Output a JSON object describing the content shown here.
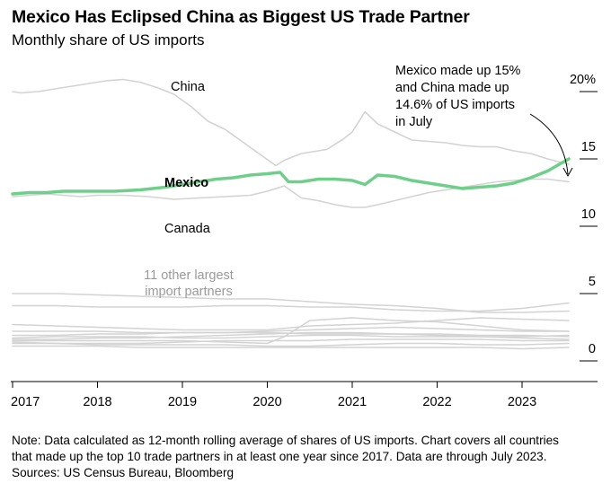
{
  "title": "Mexico Has Eclipsed China as Biggest US Trade Partner",
  "subtitle": "Monthly share of US imports",
  "annotation": [
    "Mexico made up 15%",
    "and China made up",
    "14.6% of US imports",
    "in July"
  ],
  "labels": {
    "china": "China",
    "mexico": "Mexico",
    "canada": "Canada",
    "others": [
      "11 other largest",
      "import partners"
    ]
  },
  "footnote": [
    "Note: Data calculated as 12-month rolling average of shares of US imports. Chart covers all countries",
    "that made up the top 10 trade partners in at least one year since 2017. Data are through July 2023.",
    "Sources: US Census Bureau, Bloomberg"
  ],
  "colors": {
    "mexico": "#6fcf8a",
    "gray": "#d3d3d3",
    "text": "#000000",
    "others_label": "#9a9a9a"
  },
  "chart_data": {
    "type": "line",
    "x_tick_labels": [
      "2017",
      "2018",
      "2019",
      "2020",
      "2021",
      "2022",
      "2023"
    ],
    "y_tick_labels": [
      "20%",
      "15",
      "10",
      "5",
      "0"
    ],
    "y_ticks": [
      20,
      15,
      10,
      5,
      0
    ],
    "xlim": [
      2017.0,
      2023.55
    ],
    "ylim": [
      0,
      21
    ],
    "series": [
      {
        "name": "China",
        "highlight": false,
        "points": [
          [
            2017.0,
            20.0
          ],
          [
            2017.1,
            19.9
          ],
          [
            2017.3,
            20.0
          ],
          [
            2017.5,
            20.2
          ],
          [
            2017.7,
            20.4
          ],
          [
            2017.9,
            20.6
          ],
          [
            2018.1,
            20.8
          ],
          [
            2018.3,
            20.9
          ],
          [
            2018.5,
            20.7
          ],
          [
            2018.7,
            20.3
          ],
          [
            2018.9,
            19.8
          ],
          [
            2019.1,
            18.9
          ],
          [
            2019.3,
            17.8
          ],
          [
            2019.5,
            17.2
          ],
          [
            2019.7,
            16.3
          ],
          [
            2019.9,
            15.4
          ],
          [
            2020.1,
            14.5
          ],
          [
            2020.2,
            14.9
          ],
          [
            2020.4,
            15.4
          ],
          [
            2020.6,
            15.6
          ],
          [
            2020.7,
            15.7
          ],
          [
            2020.9,
            16.5
          ],
          [
            2021.0,
            17.0
          ],
          [
            2021.15,
            18.5
          ],
          [
            2021.3,
            17.6
          ],
          [
            2021.5,
            17.0
          ],
          [
            2021.7,
            16.4
          ],
          [
            2021.9,
            16.3
          ],
          [
            2022.1,
            16.2
          ],
          [
            2022.3,
            16.0
          ],
          [
            2022.5,
            15.9
          ],
          [
            2022.7,
            15.9
          ],
          [
            2022.9,
            15.6
          ],
          [
            2023.1,
            15.4
          ],
          [
            2023.3,
            15.0
          ],
          [
            2023.55,
            14.6
          ]
        ]
      },
      {
        "name": "Mexico",
        "highlight": true,
        "points": [
          [
            2017.0,
            12.4
          ],
          [
            2017.2,
            12.5
          ],
          [
            2017.4,
            12.5
          ],
          [
            2017.6,
            12.6
          ],
          [
            2017.8,
            12.6
          ],
          [
            2018.0,
            12.6
          ],
          [
            2018.2,
            12.6
          ],
          [
            2018.5,
            12.7
          ],
          [
            2018.8,
            12.9
          ],
          [
            2019.0,
            13.1
          ],
          [
            2019.2,
            13.3
          ],
          [
            2019.4,
            13.5
          ],
          [
            2019.6,
            13.6
          ],
          [
            2019.8,
            13.8
          ],
          [
            2020.0,
            13.9
          ],
          [
            2020.15,
            14.0
          ],
          [
            2020.25,
            13.3
          ],
          [
            2020.4,
            13.3
          ],
          [
            2020.6,
            13.5
          ],
          [
            2020.8,
            13.5
          ],
          [
            2021.0,
            13.4
          ],
          [
            2021.15,
            13.1
          ],
          [
            2021.3,
            13.8
          ],
          [
            2021.5,
            13.7
          ],
          [
            2021.7,
            13.4
          ],
          [
            2021.9,
            13.2
          ],
          [
            2022.1,
            13.0
          ],
          [
            2022.3,
            12.8
          ],
          [
            2022.5,
            12.9
          ],
          [
            2022.7,
            13.0
          ],
          [
            2022.9,
            13.2
          ],
          [
            2023.1,
            13.6
          ],
          [
            2023.3,
            14.1
          ],
          [
            2023.55,
            15.0
          ]
        ]
      },
      {
        "name": "Canada",
        "highlight": false,
        "points": [
          [
            2017.0,
            12.2
          ],
          [
            2017.2,
            12.3
          ],
          [
            2017.4,
            12.4
          ],
          [
            2017.6,
            12.3
          ],
          [
            2017.8,
            12.2
          ],
          [
            2018.0,
            12.3
          ],
          [
            2018.3,
            12.3
          ],
          [
            2018.6,
            12.2
          ],
          [
            2018.9,
            12.0
          ],
          [
            2019.2,
            12.1
          ],
          [
            2019.5,
            12.2
          ],
          [
            2019.8,
            12.3
          ],
          [
            2020.0,
            12.6
          ],
          [
            2020.2,
            13.0
          ],
          [
            2020.4,
            12.1
          ],
          [
            2020.6,
            11.9
          ],
          [
            2020.8,
            11.6
          ],
          [
            2021.0,
            11.4
          ],
          [
            2021.15,
            11.4
          ],
          [
            2021.3,
            11.6
          ],
          [
            2021.5,
            11.9
          ],
          [
            2021.7,
            12.2
          ],
          [
            2021.9,
            12.5
          ],
          [
            2022.1,
            12.7
          ],
          [
            2022.3,
            12.9
          ],
          [
            2022.5,
            13.1
          ],
          [
            2022.7,
            13.3
          ],
          [
            2022.9,
            13.4
          ],
          [
            2023.1,
            13.5
          ],
          [
            2023.3,
            13.5
          ],
          [
            2023.55,
            13.3
          ]
        ]
      },
      {
        "name": "",
        "highlight": false,
        "points": [
          [
            2017.0,
            5.0
          ],
          [
            2017.5,
            5.0
          ],
          [
            2018.0,
            4.9
          ],
          [
            2018.5,
            4.8
          ],
          [
            2019.0,
            4.7
          ],
          [
            2019.5,
            4.6
          ],
          [
            2020.0,
            4.6
          ],
          [
            2020.5,
            4.4
          ],
          [
            2021.0,
            4.2
          ],
          [
            2021.5,
            4.1
          ],
          [
            2022.0,
            3.9
          ],
          [
            2022.5,
            3.6
          ],
          [
            2023.0,
            3.6
          ],
          [
            2023.55,
            3.7
          ]
        ]
      },
      {
        "name": "",
        "highlight": false,
        "points": [
          [
            2017.0,
            4.1
          ],
          [
            2017.5,
            4.1
          ],
          [
            2018.0,
            4.0
          ],
          [
            2018.5,
            4.0
          ],
          [
            2019.0,
            4.0
          ],
          [
            2019.5,
            4.1
          ],
          [
            2020.0,
            4.1
          ],
          [
            2020.5,
            4.0
          ],
          [
            2021.0,
            4.0
          ],
          [
            2021.5,
            3.8
          ],
          [
            2022.0,
            3.7
          ],
          [
            2022.5,
            3.7
          ],
          [
            2023.0,
            3.9
          ],
          [
            2023.55,
            4.3
          ]
        ]
      },
      {
        "name": "",
        "highlight": false,
        "points": [
          [
            2017.0,
            2.7
          ],
          [
            2017.5,
            2.6
          ],
          [
            2018.0,
            2.5
          ],
          [
            2018.5,
            2.4
          ],
          [
            2019.0,
            2.3
          ],
          [
            2019.5,
            2.3
          ],
          [
            2020.0,
            2.3
          ],
          [
            2020.5,
            2.6
          ],
          [
            2021.0,
            2.7
          ],
          [
            2021.5,
            2.8
          ],
          [
            2022.0,
            3.0
          ],
          [
            2022.5,
            3.2
          ],
          [
            2023.0,
            3.1
          ],
          [
            2023.55,
            3.0
          ]
        ]
      },
      {
        "name": "",
        "highlight": false,
        "points": [
          [
            2017.0,
            2.2
          ],
          [
            2017.5,
            2.2
          ],
          [
            2018.0,
            2.2
          ],
          [
            2018.5,
            2.1
          ],
          [
            2019.0,
            2.1
          ],
          [
            2019.5,
            2.1
          ],
          [
            2020.0,
            2.2
          ],
          [
            2020.5,
            2.3
          ],
          [
            2021.0,
            2.4
          ],
          [
            2021.5,
            2.5
          ],
          [
            2022.0,
            2.4
          ],
          [
            2022.5,
            2.3
          ],
          [
            2023.0,
            2.2
          ],
          [
            2023.55,
            2.2
          ]
        ]
      },
      {
        "name": "",
        "highlight": false,
        "points": [
          [
            2017.0,
            1.9
          ],
          [
            2017.5,
            1.9
          ],
          [
            2018.0,
            2.0
          ],
          [
            2018.5,
            2.0
          ],
          [
            2019.0,
            2.1
          ],
          [
            2019.5,
            2.1
          ],
          [
            2020.0,
            2.1
          ],
          [
            2020.5,
            2.0
          ],
          [
            2021.0,
            2.0
          ],
          [
            2021.5,
            2.0
          ],
          [
            2022.0,
            2.0
          ],
          [
            2022.5,
            1.9
          ],
          [
            2023.0,
            1.9
          ],
          [
            2023.55,
            1.8
          ]
        ]
      },
      {
        "name": "",
        "highlight": false,
        "points": [
          [
            2017.0,
            1.7
          ],
          [
            2017.5,
            1.8
          ],
          [
            2018.0,
            1.8
          ],
          [
            2018.5,
            1.8
          ],
          [
            2019.0,
            1.7
          ],
          [
            2019.5,
            1.7
          ],
          [
            2020.0,
            1.8
          ],
          [
            2020.5,
            1.9
          ],
          [
            2021.0,
            1.9
          ],
          [
            2021.5,
            1.8
          ],
          [
            2022.0,
            1.8
          ],
          [
            2022.5,
            1.8
          ],
          [
            2023.0,
            1.8
          ],
          [
            2023.55,
            1.9
          ]
        ]
      },
      {
        "name": "",
        "highlight": false,
        "points": [
          [
            2017.0,
            1.6
          ],
          [
            2017.5,
            1.6
          ],
          [
            2018.0,
            1.7
          ],
          [
            2018.5,
            1.7
          ],
          [
            2019.0,
            1.8
          ],
          [
            2019.5,
            1.9
          ],
          [
            2020.0,
            2.0
          ],
          [
            2020.5,
            2.1
          ],
          [
            2021.0,
            2.1
          ],
          [
            2021.5,
            2.0
          ],
          [
            2022.0,
            1.9
          ],
          [
            2022.5,
            1.8
          ],
          [
            2023.0,
            1.7
          ],
          [
            2023.55,
            1.6
          ]
        ]
      },
      {
        "name": "",
        "highlight": false,
        "points": [
          [
            2017.0,
            1.5
          ],
          [
            2017.5,
            1.5
          ],
          [
            2018.0,
            1.5
          ],
          [
            2018.5,
            1.5
          ],
          [
            2019.0,
            1.5
          ],
          [
            2019.5,
            1.4
          ],
          [
            2020.0,
            1.3
          ],
          [
            2020.2,
            1.8
          ],
          [
            2020.5,
            3.0
          ],
          [
            2021.0,
            3.2
          ],
          [
            2021.5,
            3.0
          ],
          [
            2022.0,
            2.9
          ],
          [
            2022.5,
            2.6
          ],
          [
            2023.0,
            2.3
          ],
          [
            2023.55,
            2.2
          ]
        ]
      },
      {
        "name": "",
        "highlight": false,
        "points": [
          [
            2017.0,
            1.4
          ],
          [
            2017.5,
            1.3
          ],
          [
            2018.0,
            1.3
          ],
          [
            2018.5,
            1.3
          ],
          [
            2019.0,
            1.4
          ],
          [
            2019.5,
            1.5
          ],
          [
            2020.0,
            1.5
          ],
          [
            2020.5,
            1.5
          ],
          [
            2021.0,
            1.6
          ],
          [
            2021.5,
            1.6
          ],
          [
            2022.0,
            1.6
          ],
          [
            2022.5,
            1.6
          ],
          [
            2023.0,
            1.5
          ],
          [
            2023.55,
            1.5
          ]
        ]
      },
      {
        "name": "",
        "highlight": false,
        "points": [
          [
            2017.0,
            1.3
          ],
          [
            2017.5,
            1.3
          ],
          [
            2018.0,
            1.2
          ],
          [
            2018.5,
            1.2
          ],
          [
            2019.0,
            1.2
          ],
          [
            2019.5,
            1.2
          ],
          [
            2020.0,
            1.1
          ],
          [
            2020.5,
            1.1
          ],
          [
            2021.0,
            1.2
          ],
          [
            2021.5,
            1.3
          ],
          [
            2022.0,
            1.3
          ],
          [
            2022.5,
            1.2
          ],
          [
            2023.0,
            1.2
          ],
          [
            2023.55,
            1.3
          ]
        ]
      },
      {
        "name": "",
        "highlight": false,
        "points": [
          [
            2017.0,
            1.1
          ],
          [
            2017.5,
            1.1
          ],
          [
            2018.0,
            1.1
          ],
          [
            2018.5,
            1.0
          ],
          [
            2019.0,
            1.0
          ],
          [
            2019.5,
            1.0
          ],
          [
            2020.0,
            1.0
          ],
          [
            2020.5,
            1.0
          ],
          [
            2021.0,
            1.0
          ],
          [
            2021.5,
            1.0
          ],
          [
            2022.0,
            1.0
          ],
          [
            2022.5,
            1.0
          ],
          [
            2023.0,
            0.9
          ],
          [
            2023.55,
            1.0
          ]
        ]
      }
    ]
  }
}
